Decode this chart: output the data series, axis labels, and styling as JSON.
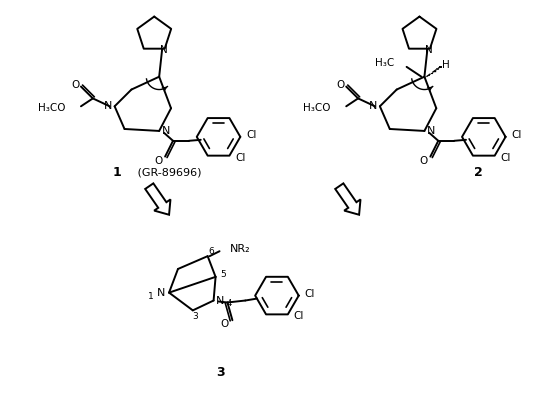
{
  "bg_color": "#ffffff",
  "lw": 1.4,
  "figsize": [
    5.43,
    3.94
  ],
  "dpi": 100,
  "mol1_label": "1",
  "mol1_sublabel": " (GR-89696)",
  "mol2_label": "2",
  "mol3_label": "3"
}
